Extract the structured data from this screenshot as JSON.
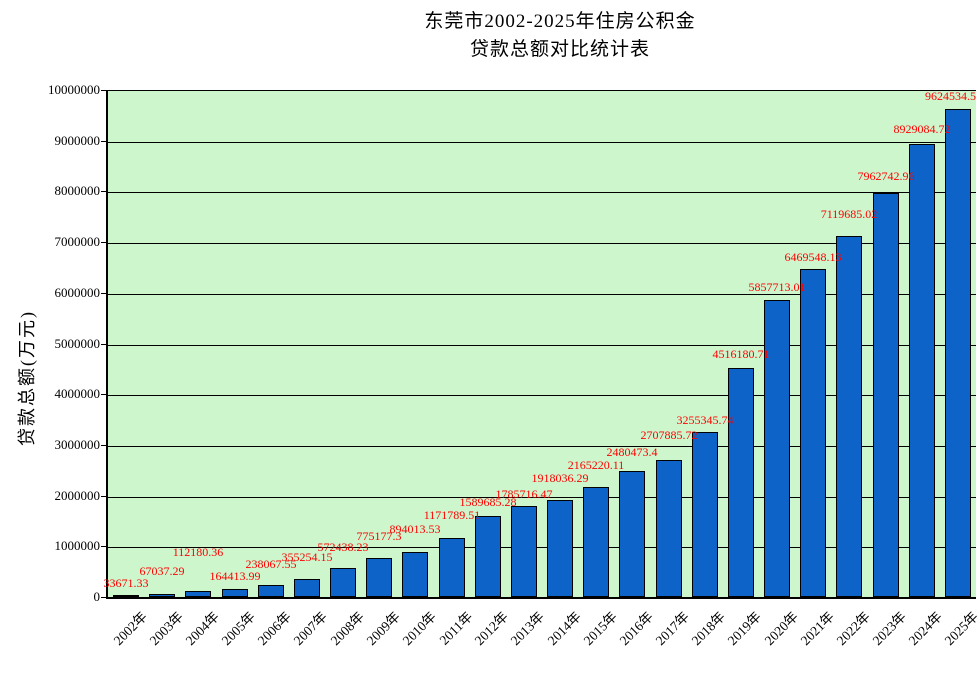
{
  "title": {
    "line1": "东莞市2002-2025年住房公积金",
    "line2": "贷款总额对比统计表"
  },
  "chart_data": {
    "type": "bar",
    "title": "东莞市2002-2025年住房公积金 贷款总额对比统计表",
    "xlabel": "",
    "ylabel": "贷款总额(万元)",
    "ylim": [
      0,
      10000000
    ],
    "ytick_step": 1000000,
    "yticks": [
      "0",
      "1000000",
      "2000000",
      "3000000",
      "4000000",
      "5000000",
      "6000000",
      "7000000",
      "8000000",
      "9000000",
      "10000000"
    ],
    "grid": true,
    "legend": false,
    "categories": [
      "2002年",
      "2003年",
      "2004年",
      "2005年",
      "2006年",
      "2007年",
      "2008年",
      "2009年",
      "2010年",
      "2011年",
      "2012年",
      "2013年",
      "2014年",
      "2015年",
      "2016年",
      "2017年",
      "2018年",
      "2019年",
      "2020年",
      "2021年",
      "2022年",
      "2023年",
      "2024年",
      "2025年"
    ],
    "values": [
      33671.33,
      67037.29,
      112180.36,
      164413.99,
      238067.55,
      355254.15,
      572438.23,
      775177.3,
      894013.53,
      1171789.51,
      1589685.28,
      1785716.47,
      1918036.29,
      2165220.11,
      2480473.4,
      2707885.72,
      3255345.74,
      4516180.71,
      5857713.01,
      6469548.13,
      7119685.02,
      7962742.96,
      8929084.72,
      9624534.5
    ],
    "value_labels": [
      "33671.33",
      "67037.29",
      "112180.36",
      "164413.99",
      "238067.55",
      "355254.15",
      "572438.23",
      "775177.3",
      "894013.53",
      "1171789.51",
      "1589685.28",
      "1785716.47",
      "1918036.29",
      "2165220.11",
      "2480473.4",
      "2707885.72",
      "3255345.74",
      "4516180.71",
      "5857713.01",
      "6469548.13",
      "7119685.02",
      "7962742.96",
      "8929084.72",
      "9624534.5"
    ],
    "colors": {
      "bar_fill": "#0d63c8",
      "bar_border": "#000000",
      "plot_background": "#cdf6cd",
      "value_label_color": "#ff0000",
      "grid_color": "#000000",
      "text_color": "#000000"
    }
  }
}
